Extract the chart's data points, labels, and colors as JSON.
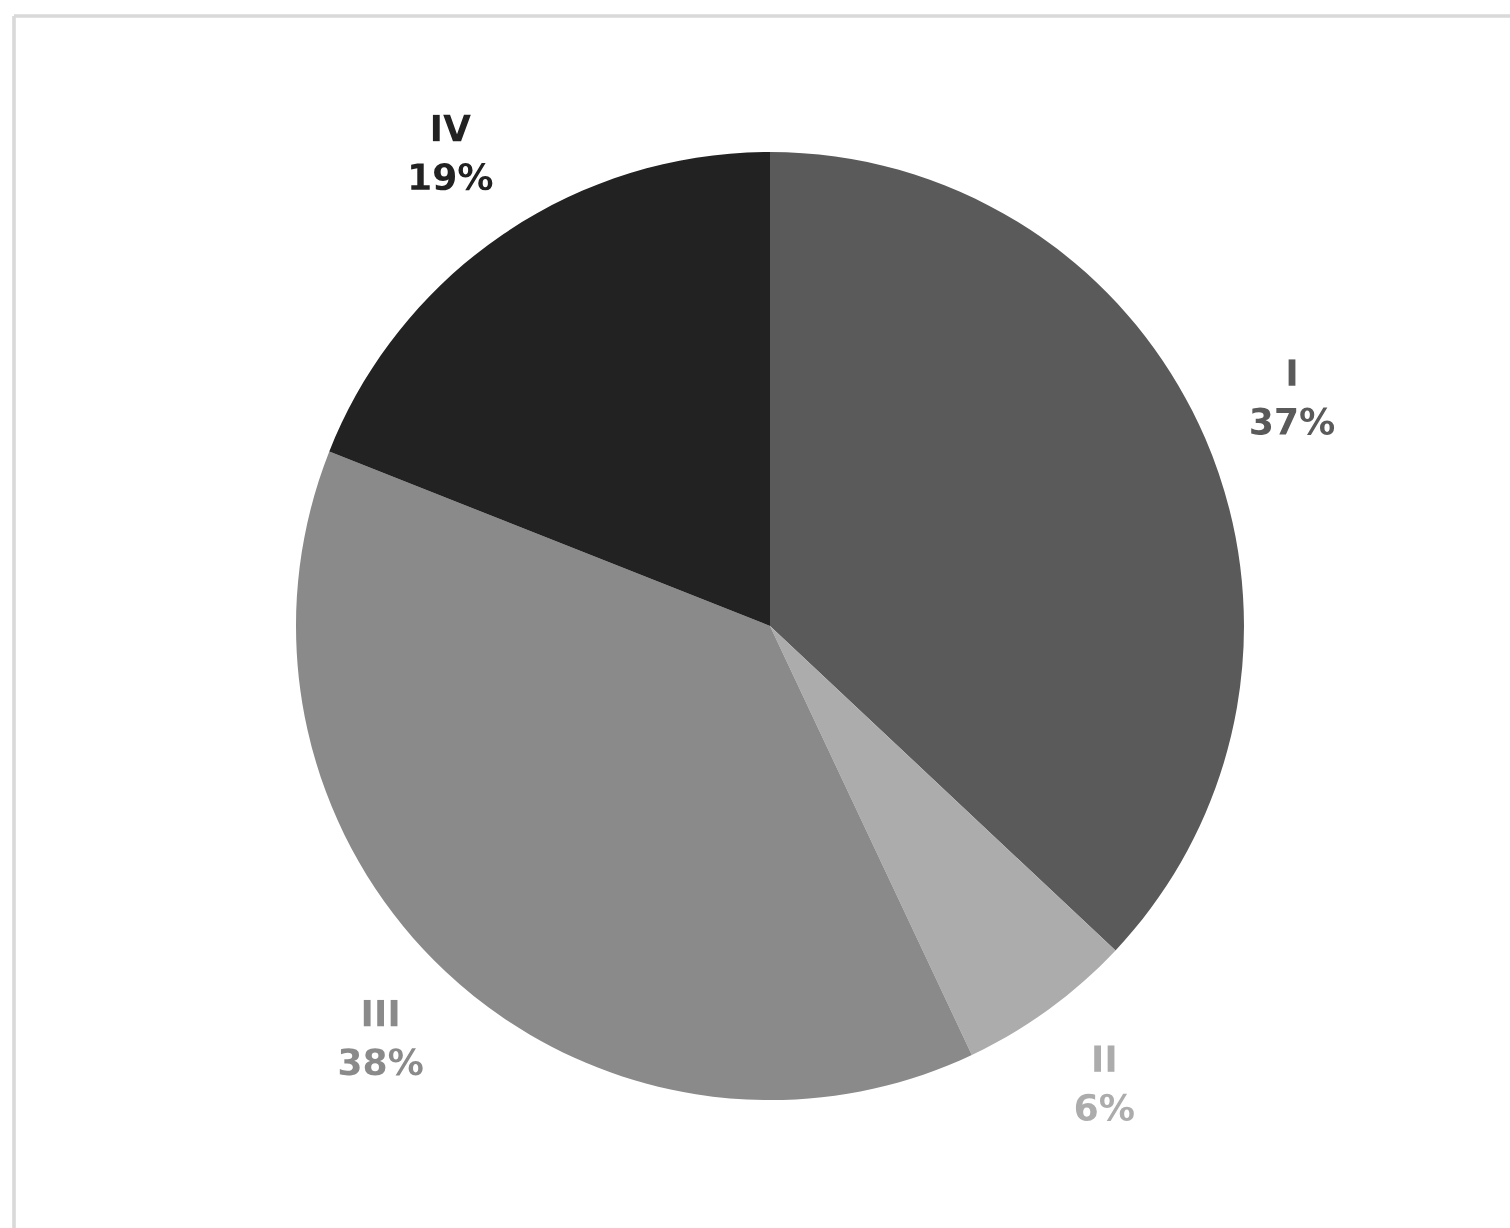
{
  "chart_data": {
    "type": "pie",
    "categories": [
      "I",
      "II",
      "III",
      "IV"
    ],
    "values": [
      37,
      6,
      38,
      19
    ],
    "colors": [
      "#5a5a5a",
      "#acacac",
      "#8a8a8a",
      "#222222"
    ],
    "value_labels": [
      "37%",
      "6%",
      "38%",
      "19%"
    ]
  }
}
